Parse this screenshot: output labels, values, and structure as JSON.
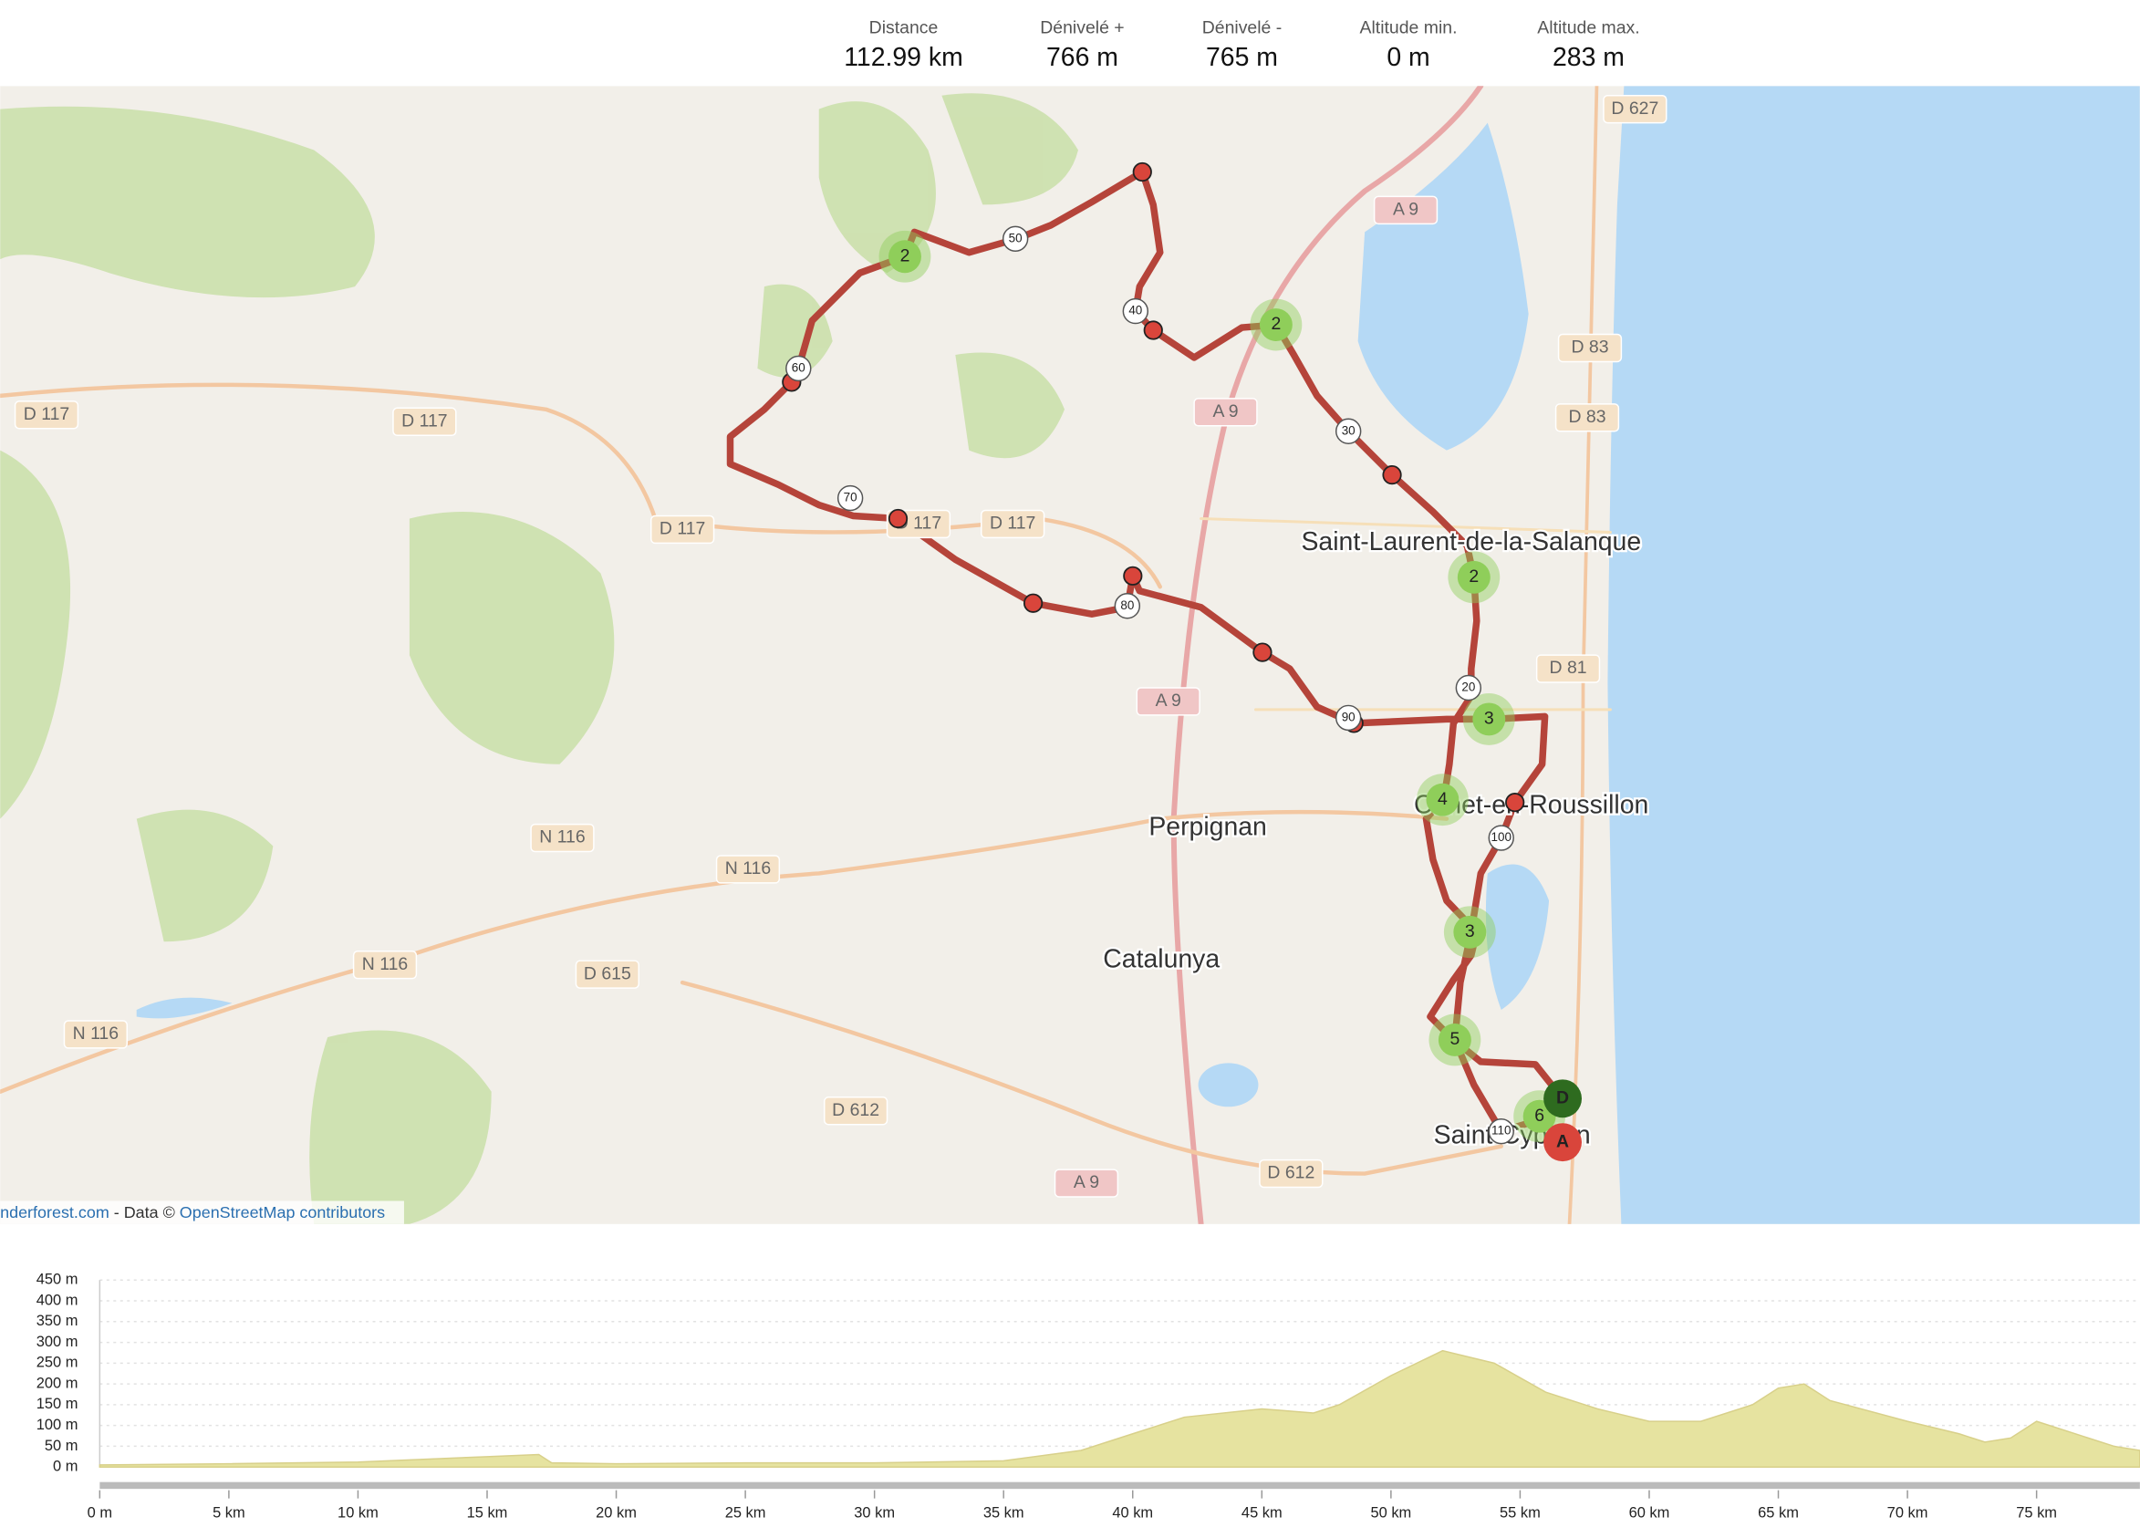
{
  "header": {
    "stats": [
      {
        "label": "Distance",
        "value": "112.99 km"
      },
      {
        "label": "Dénivelé +",
        "value": "766 m"
      },
      {
        "label": "Dénivelé -",
        "value": "765 m"
      },
      {
        "label": "Altitude min.",
        "value": "0 m"
      },
      {
        "label": "Altitude max.",
        "value": "283 m"
      }
    ]
  },
  "map": {
    "places": [
      "Saint-Laurent-de-la-Salanque",
      "Canet-en-Roussillon",
      "Perpignan",
      "Catalunya",
      "Saint-Cyprien"
    ],
    "roads": [
      "D 627",
      "A 9",
      "D 83",
      "D 83",
      "D 117",
      "D 117",
      "D 117",
      "D 117",
      "D 117",
      "A 9",
      "A 9",
      "D 81",
      "N 116",
      "N 116",
      "N 116",
      "N 116",
      "D 615",
      "D 612",
      "D 612",
      "A 9"
    ],
    "route": {
      "km_markers": [
        "50",
        "40",
        "60",
        "70",
        "80",
        "30",
        "20",
        "90",
        "100",
        "110"
      ],
      "clusters": [
        "2",
        "2",
        "2",
        "3",
        "4",
        "3",
        "5",
        "6"
      ],
      "start": "D",
      "end": "A"
    },
    "attribution": {
      "site": "nderforest.com",
      "text": " - Data © ",
      "link": "OpenStreetMap contributors"
    }
  },
  "elevation_profile": {
    "type": "area",
    "color": "#e6e3a0",
    "x": [
      0,
      5,
      10,
      15,
      17,
      17.5,
      20,
      25,
      30,
      35,
      38,
      40,
      42,
      45,
      47,
      48,
      50,
      52,
      54,
      56,
      58,
      60,
      62,
      64,
      65,
      66,
      67,
      70,
      72,
      73,
      74,
      75,
      76,
      78,
      79
    ],
    "values": [
      5,
      8,
      12,
      25,
      30,
      10,
      8,
      10,
      10,
      15,
      40,
      80,
      120,
      140,
      130,
      150,
      220,
      280,
      250,
      180,
      140,
      110,
      110,
      150,
      190,
      200,
      160,
      110,
      80,
      60,
      70,
      110,
      90,
      50,
      40
    ],
    "xlim": [
      0,
      79
    ],
    "ylim": [
      0,
      450
    ],
    "xticks": [
      {
        "value": 0,
        "label": "0 m"
      },
      {
        "value": 5,
        "label": "5 km"
      },
      {
        "value": 10,
        "label": "10 km"
      },
      {
        "value": 15,
        "label": "15 km"
      },
      {
        "value": 20,
        "label": "20 km"
      },
      {
        "value": 25,
        "label": "25 km"
      },
      {
        "value": 30,
        "label": "30 km"
      },
      {
        "value": 35,
        "label": "35 km"
      },
      {
        "value": 40,
        "label": "40 km"
      },
      {
        "value": 45,
        "label": "45 km"
      },
      {
        "value": 50,
        "label": "50 km"
      },
      {
        "value": 55,
        "label": "55 km"
      },
      {
        "value": 60,
        "label": "60 km"
      },
      {
        "value": 65,
        "label": "65 km"
      },
      {
        "value": 70,
        "label": "70 km"
      },
      {
        "value": 75,
        "label": "75 km"
      }
    ],
    "yticks": [
      {
        "value": 0,
        "label": "0 m"
      },
      {
        "value": 50,
        "label": "50 m"
      },
      {
        "value": 100,
        "label": "100 m"
      },
      {
        "value": 150,
        "label": "150 m"
      },
      {
        "value": 200,
        "label": "200 m"
      },
      {
        "value": 250,
        "label": "250 m"
      },
      {
        "value": 300,
        "label": "300 m"
      },
      {
        "value": 350,
        "label": "350 m"
      },
      {
        "value": 400,
        "label": "400 m"
      },
      {
        "value": 450,
        "label": "450 m"
      }
    ]
  }
}
